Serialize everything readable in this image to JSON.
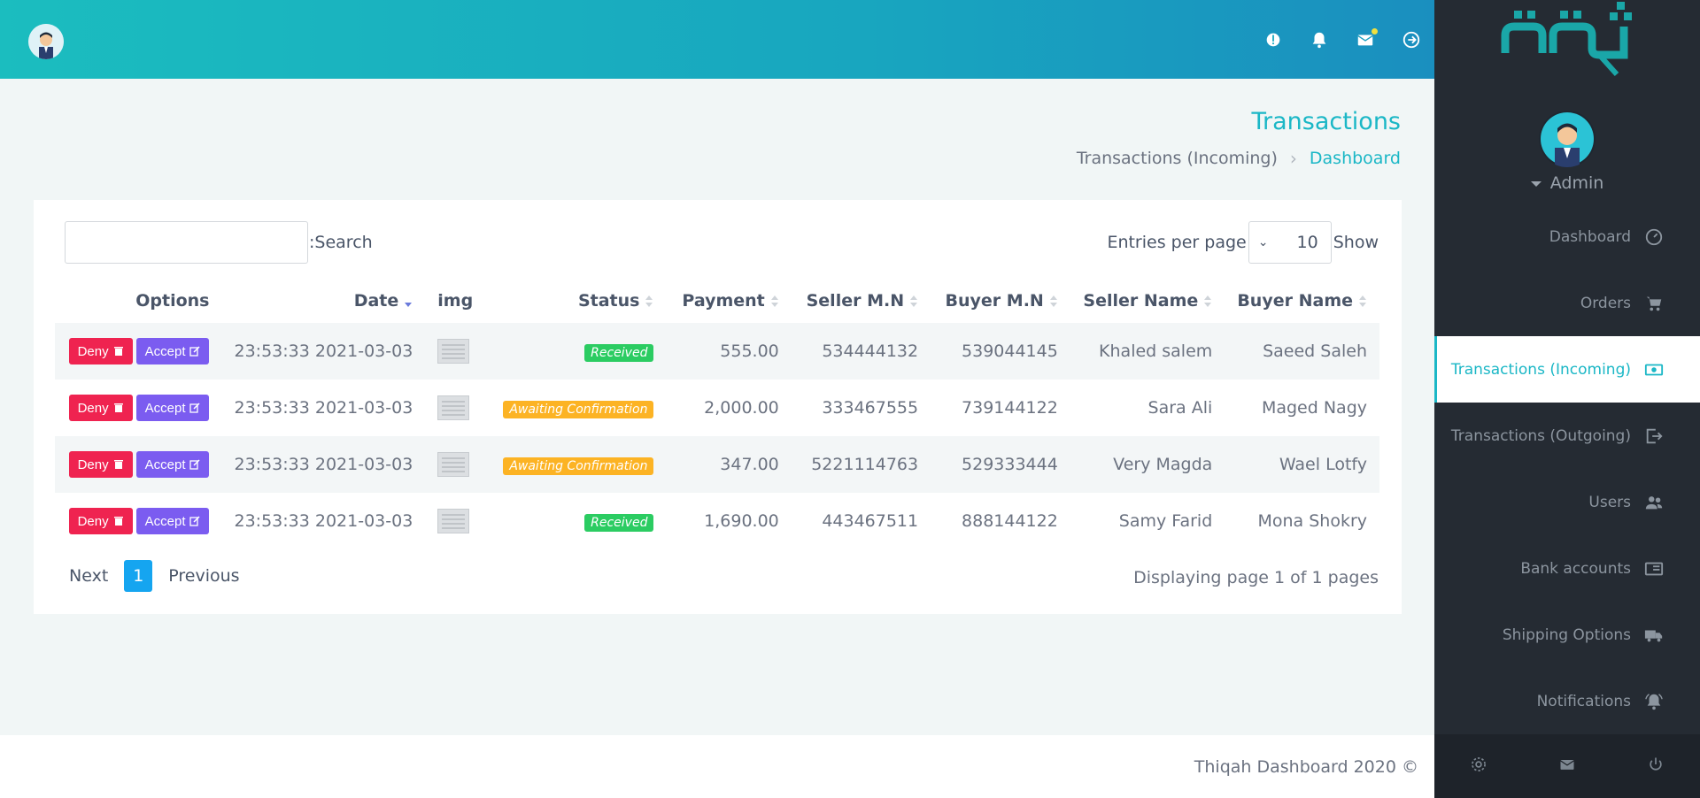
{
  "header": {
    "icons": [
      "bug-icon",
      "bell-icon",
      "mail-icon",
      "logout-circle-icon"
    ]
  },
  "page": {
    "title": "Transactions",
    "breadcrumb": [
      "Transactions (Incoming)",
      "Dashboard"
    ]
  },
  "table_controls": {
    "search_label": ":Search",
    "search_placeholder": "",
    "entries_label": "Entries per page",
    "entries_value": "10",
    "show_label": "Show"
  },
  "table": {
    "columns": [
      "Options",
      "Date",
      "img",
      "Status",
      "Payment",
      "Seller M.N",
      "Buyer M.N",
      "Seller Name",
      "Buyer Name"
    ],
    "deny_label": "Deny",
    "accept_label": "Accept",
    "rows": [
      {
        "date": "23:53:33 2021-03-03",
        "status": "Received",
        "payment": "555.00",
        "seller_mn": "534444132",
        "buyer_mn": "539044145",
        "seller_name": "Khaled salem",
        "buyer_name": "Saeed Saleh"
      },
      {
        "date": "23:53:33 2021-03-03",
        "status": "Awaiting Confirmation",
        "payment": "2,000.00",
        "seller_mn": "333467555",
        "buyer_mn": "739144122",
        "seller_name": "Sara Ali",
        "buyer_name": "Maged Nagy"
      },
      {
        "date": "23:53:33 2021-03-03",
        "status": "Awaiting Confirmation",
        "payment": "347.00",
        "seller_mn": "5221114763",
        "buyer_mn": "529333444",
        "seller_name": "Very Magda",
        "buyer_name": "Wael Lotfy"
      },
      {
        "date": "23:53:33 2021-03-03",
        "status": "Received",
        "payment": "1,690.00",
        "seller_mn": "443467511",
        "buyer_mn": "888144122",
        "seller_name": "Samy Farid",
        "buyer_name": "Mona Shokry"
      }
    ]
  },
  "pagination": {
    "next_label": "Next",
    "current_page": "1",
    "previous_label": "Previous",
    "summary": "Displaying page 1 of 1 pages"
  },
  "sidebar": {
    "user_name": "Admin",
    "items": [
      {
        "label": "Dashboard",
        "icon": "speedometer-icon"
      },
      {
        "label": "Orders",
        "icon": "cart-icon"
      },
      {
        "label": "Transactions (Incoming)",
        "icon": "money-icon",
        "active": true
      },
      {
        "label": "Transactions (Outgoing)",
        "icon": "exit-icon"
      },
      {
        "label": "Users",
        "icon": "users-icon"
      },
      {
        "label": "Bank accounts",
        "icon": "bank-card-icon"
      },
      {
        "label": "Shipping Options",
        "icon": "truck-icon"
      },
      {
        "label": "Notifications",
        "icon": "bell-ring-icon"
      }
    ],
    "footer_icons": [
      "gear-icon",
      "mail-icon",
      "power-icon"
    ]
  },
  "footer": {
    "text": "Thiqah Dashboard 2020 ©"
  },
  "colors": {
    "accent": "#1bb7c6",
    "sidebar_bg": "#252b33",
    "deny": "#ef2350",
    "accept": "#7b5cf0",
    "received": "#2bcc62",
    "awaiting": "#fcb324",
    "page_active": "#15a5f0"
  }
}
